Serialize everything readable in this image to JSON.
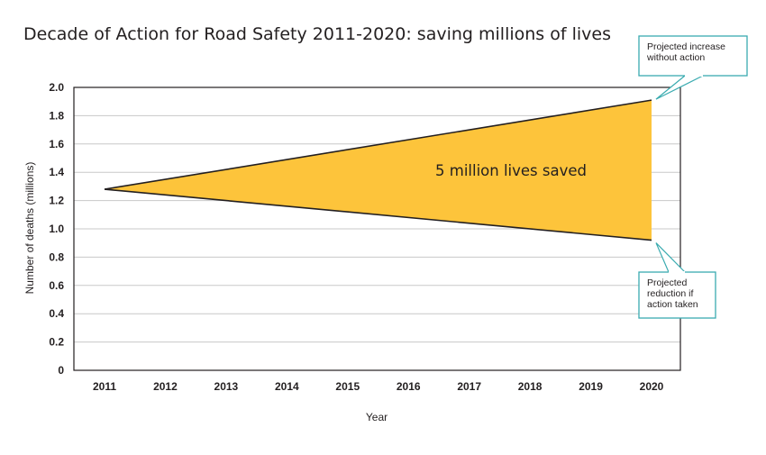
{
  "chart_data": {
    "type": "area",
    "title": "Decade of Action for Road Safety 2011-2020: saving millions of lives",
    "xlabel": "Year",
    "ylabel": "Number of deaths (millions)",
    "categories": [
      "2011",
      "2012",
      "2013",
      "2014",
      "2015",
      "2016",
      "2017",
      "2018",
      "2019",
      "2020"
    ],
    "y_ticks": [
      "0",
      "0.2",
      "0.4",
      "0.6",
      "0.8",
      "1.0",
      "1.2",
      "1.4",
      "1.6",
      "1.8",
      "2.0"
    ],
    "ylim": [
      0,
      2.0
    ],
    "grid": true,
    "series": [
      {
        "name": "Projected increase without action",
        "x": [
          2011,
          2020
        ],
        "y": [
          1.28,
          1.91
        ]
      },
      {
        "name": "Projected reduction if action taken",
        "x": [
          2011,
          2020
        ],
        "y": [
          1.28,
          0.92
        ]
      }
    ],
    "area_label": "5 million lives saved",
    "annotations": {
      "upper_lines": [
        "Projected increase",
        "without action"
      ],
      "lower_lines": [
        "Projected",
        "reduction if",
        "action taken"
      ]
    }
  },
  "colors": {
    "fill": "#fdc43b",
    "line": "#231f20",
    "grid": "#c8c8c8",
    "callout_border": "#3aabb0"
  }
}
